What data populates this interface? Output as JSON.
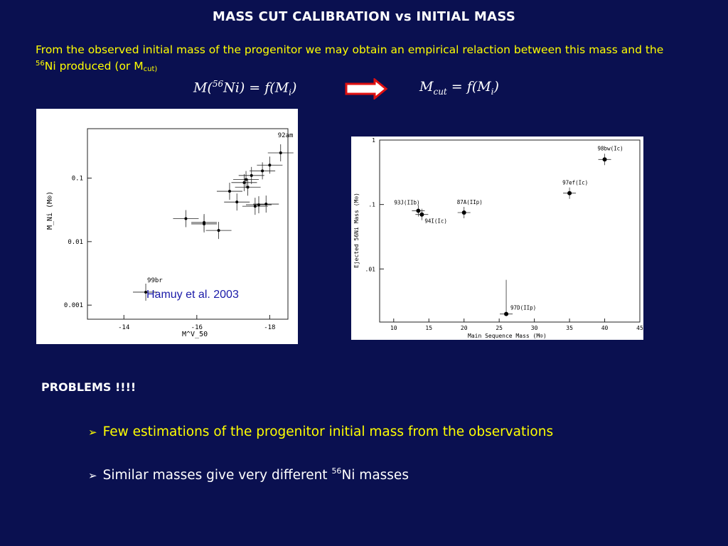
{
  "slide": {
    "title": "MASS CUT CALIBRATION vs INITIAL MASS",
    "intro_text_1": "From the observed initial mass of the progenitor we may obtain an empirical relaction between this mass and the ",
    "intro_sup": "56",
    "intro_text_2": "Ni produced (or M",
    "intro_sub": "cut)",
    "formula_left": "M(56Ni) = f(Mi)",
    "formula_right": "Mcut = f(Mi)",
    "caption": "Hamuy et al. 2003",
    "problems_heading": "PROBLEMS !!!!",
    "bullets": [
      {
        "text": "Few estimations of the progenitor initial mass from the observations",
        "color": "#ffff00"
      },
      {
        "text_before": "Similar masses give very different ",
        "sup": "56",
        "text_after": "Ni masses",
        "color": "#ffffff"
      }
    ],
    "colors": {
      "background": "#0a1050",
      "accent": "#ffff00",
      "caption": "#1a1aa8",
      "arrow_fill": "#ffffff",
      "arrow_stroke": "#e01010"
    }
  },
  "chart_data": [
    {
      "type": "scatter",
      "title": "",
      "xlabel": "M^V_50",
      "ylabel": "M_Ni (M⊙)",
      "x_ticks": [
        "-14",
        "-16",
        "-18"
      ],
      "y_ticks": [
        "0.1",
        "0.01",
        "0.001"
      ],
      "xlim": [
        -13,
        -18.5
      ],
      "ylim": [
        0.0006,
        0.6
      ],
      "y_scale": "log",
      "labels": [
        "92am",
        "99br"
      ],
      "points": [
        {
          "x": -14.6,
          "y": 0.0016,
          "label": "99br"
        },
        {
          "x": -18.3,
          "y": 0.25,
          "label": "92am"
        },
        {
          "x": -15.7,
          "y": 0.023
        },
        {
          "x": -16.2,
          "y": 0.019
        },
        {
          "x": -16.2,
          "y": 0.02
        },
        {
          "x": -16.6,
          "y": 0.015
        },
        {
          "x": -16.9,
          "y": 0.062
        },
        {
          "x": -17.1,
          "y": 0.042
        },
        {
          "x": -17.3,
          "y": 0.085
        },
        {
          "x": -17.35,
          "y": 0.095
        },
        {
          "x": -17.4,
          "y": 0.072
        },
        {
          "x": -17.6,
          "y": 0.036
        },
        {
          "x": -17.7,
          "y": 0.038
        },
        {
          "x": -17.8,
          "y": 0.13
        },
        {
          "x": -17.9,
          "y": 0.039
        },
        {
          "x": -18.0,
          "y": 0.16
        },
        {
          "x": -17.5,
          "y": 0.11
        }
      ]
    },
    {
      "type": "scatter",
      "title": "",
      "xlabel": "Main Sequence Mass (M⊙)",
      "ylabel": "Ejected 56Ni Mass (M⊙)",
      "x_ticks": [
        "10",
        "15",
        "20",
        "25",
        "30",
        "35",
        "40",
        "45"
      ],
      "y_ticks": [
        "1",
        ".1",
        ".01"
      ],
      "xlim": [
        8,
        45
      ],
      "ylim": [
        0.0015,
        1
      ],
      "y_scale": "log",
      "points": [
        {
          "x": 13.5,
          "y": 0.08,
          "label": "93J(IIb)"
        },
        {
          "x": 14.0,
          "y": 0.07,
          "label": "94I(Ic)"
        },
        {
          "x": 20.0,
          "y": 0.075,
          "label": "87A(IIp)"
        },
        {
          "x": 26.0,
          "y": 0.002,
          "label": "97D(IIp)"
        },
        {
          "x": 35.0,
          "y": 0.15,
          "label": "97ef(Ic)"
        },
        {
          "x": 40.0,
          "y": 0.5,
          "label": "98bw(Ic)"
        }
      ]
    }
  ]
}
